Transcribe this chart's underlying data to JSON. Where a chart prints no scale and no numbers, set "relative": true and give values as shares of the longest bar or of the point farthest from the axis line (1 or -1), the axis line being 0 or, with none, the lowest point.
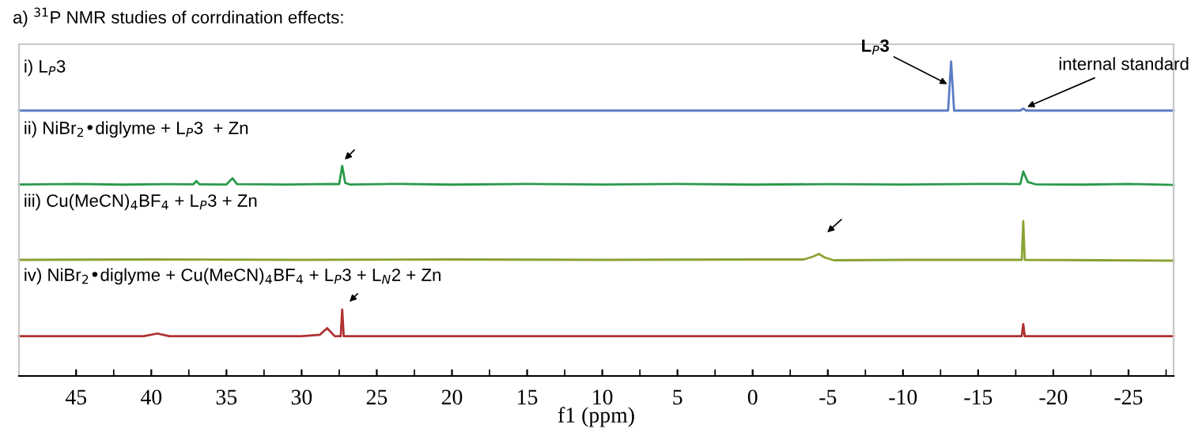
{
  "chart_data": [
    {
      "type": "line",
      "title": "i) L$_{P}$3",
      "relative": true,
      "xlim": [
        48.8,
        -28
      ],
      "tick_labels": false,
      "annotations": [
        "a) $^{31}$P NMR studies of corrdination effects:",
        {
          "text": "L$_{P}$3",
          "x": -13.2,
          "y": 0.5
        },
        {
          "text": "internal standard",
          "x": -18.0,
          "y": 0.04
        }
      ],
      "series": [
        {
          "color": "#5a7cc4",
          "x": [
            48.8,
            -13.0,
            -13.2,
            -13.4,
            -17.8,
            -18.0,
            -18.2,
            -28
          ],
          "values": [
            0,
            0,
            1,
            0,
            0,
            0.04,
            0,
            0
          ]
        }
      ]
    },
    {
      "type": "line",
      "title": "ii) NiBr$_{2}$•diglyme + L$_{P}$3  + Zn",
      "relative": true,
      "xlim": [
        48.8,
        -28
      ],
      "tick_labels": false,
      "series": [
        {
          "color": "#2a9a4a",
          "x": [
            48.8,
            45,
            42,
            39,
            37.2,
            37.0,
            36.8,
            35,
            34.6,
            34.3,
            31,
            28,
            27.5,
            27.3,
            27.1,
            26.8,
            24,
            20,
            15,
            10,
            5,
            0,
            -5,
            -10,
            -15,
            -17.8,
            -18.0,
            -18.3,
            -18.8,
            -22,
            -25,
            -28
          ],
          "values": [
            0.02,
            0.05,
            0.01,
            0.04,
            0.03,
            0.2,
            0.03,
            0.02,
            0.35,
            0.04,
            0.02,
            0.05,
            0.04,
            1,
            0.1,
            0.02,
            0.05,
            0.01,
            0.05,
            0.02,
            0.05,
            0.01,
            0.04,
            0.02,
            0.05,
            0.04,
            0.7,
            0.15,
            0.03,
            0.01,
            0.05,
            0
          ]
        }
      ]
    },
    {
      "type": "line",
      "title": "iii) Cu(MeCN)$_{4}$BF$_{4}$ + L$_{P}$3 + Zn",
      "relative": true,
      "xlim": [
        48.8,
        -28
      ],
      "tick_labels": false,
      "series": [
        {
          "color": "#8aa334",
          "x": [
            48.8,
            40,
            30,
            20,
            10,
            0,
            -3.4,
            -4.0,
            -4.4,
            -4.8,
            -5.4,
            -10,
            -17.9,
            -18.0,
            -18.1,
            -28
          ],
          "values": [
            0.02,
            0.03,
            0.02,
            0.03,
            0.02,
            0.03,
            0.03,
            0.1,
            0.17,
            0.08,
            0.01,
            0.02,
            0.02,
            1,
            0.02,
            0
          ]
        }
      ]
    },
    {
      "type": "line",
      "title": "iv) NiBr$_{2}$•diglyme + Cu(MeCN)$_{4}$BF$_{4}$ + L$_{P}$3 + L$_{N}$2 + Zn",
      "relative": true,
      "xlim": [
        48.8,
        -28
      ],
      "tick_labels": "x",
      "xlabel": "f1 (ppm)",
      "xticks": [
        45,
        {
          "value": 42.5,
          "label": null
        },
        40,
        {
          "value": 37.5,
          "label": null
        },
        35,
        {
          "value": 32.5,
          "label": null
        },
        30,
        {
          "value": 27.5,
          "label": null
        },
        25,
        {
          "value": 22.5,
          "label": null
        },
        20,
        {
          "value": 17.5,
          "label": null
        },
        15,
        {
          "value": 12.5,
          "label": null
        },
        10,
        {
          "value": 7.5,
          "label": null
        },
        5,
        {
          "value": 2.5,
          "label": null
        },
        0,
        {
          "value": -2.5,
          "label": null
        },
        -5,
        {
          "value": -7.5,
          "label": null
        },
        -10,
        {
          "value": -12.5,
          "label": null
        },
        -15,
        {
          "value": -17.5,
          "label": null
        },
        -20,
        {
          "value": -22.5,
          "label": null
        },
        -25,
        {
          "value": -27.5,
          "label": null
        }
      ],
      "series": [
        {
          "color": "#b03030",
          "x": [
            48.8,
            40.5,
            39.6,
            38.8,
            30,
            28.8,
            28.3,
            27.8,
            27.4,
            27.3,
            27.2,
            20,
            0,
            -17.9,
            -18.0,
            -18.1,
            -28
          ],
          "values": [
            0.6,
            0.6,
            0.64,
            0.6,
            0.6,
            0.62,
            0.72,
            0.6,
            0.6,
            1,
            0.6,
            0.6,
            0.6,
            0.6,
            0.78,
            0.6,
            0.6
          ]
        }
      ]
    }
  ]
}
